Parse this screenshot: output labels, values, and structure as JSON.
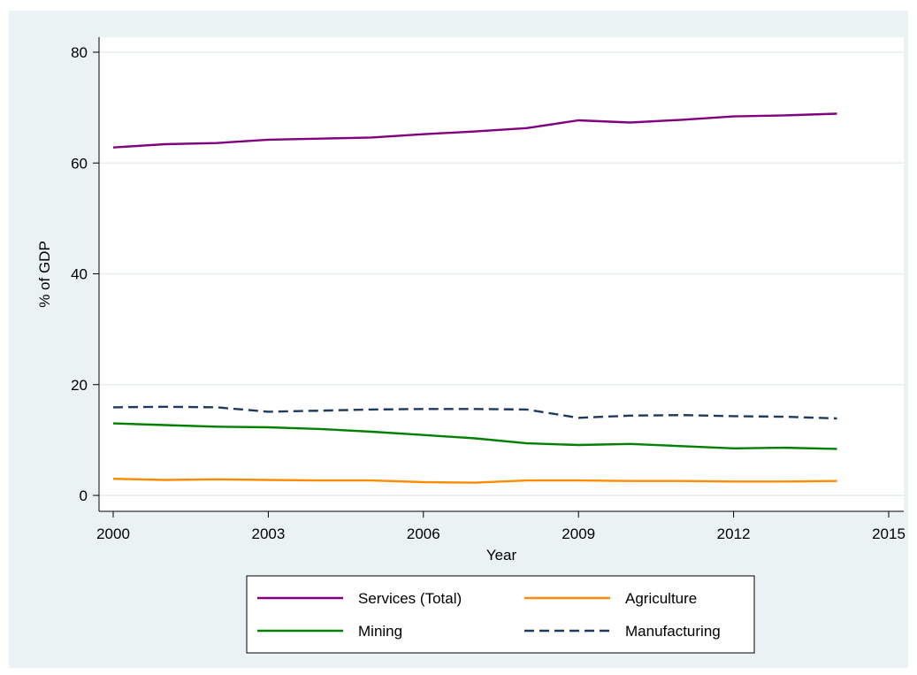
{
  "chart_data": {
    "type": "line",
    "xlabel": "Year",
    "ylabel": "% of GDP",
    "xlim": [
      2000,
      2015
    ],
    "ylim": [
      0,
      80
    ],
    "xticks": [
      2000,
      2003,
      2006,
      2009,
      2012,
      2015
    ],
    "yticks": [
      0,
      20,
      40,
      60,
      80
    ],
    "grid": true,
    "legend_position": "bottom",
    "x": [
      2000,
      2001,
      2002,
      2003,
      2004,
      2005,
      2006,
      2007,
      2008,
      2009,
      2010,
      2011,
      2012,
      2013,
      2014
    ],
    "series": [
      {
        "name": "Services (Total)",
        "color": "#800080",
        "dash": "solid",
        "values": [
          62.8,
          63.4,
          63.6,
          64.2,
          64.4,
          64.6,
          65.2,
          65.7,
          66.3,
          67.7,
          67.3,
          67.8,
          68.4,
          68.6,
          68.9
        ]
      },
      {
        "name": "Agriculture",
        "color": "#FF8C00",
        "dash": "solid",
        "values": [
          3.0,
          2.8,
          2.9,
          2.8,
          2.7,
          2.7,
          2.4,
          2.3,
          2.7,
          2.7,
          2.6,
          2.6,
          2.5,
          2.5,
          2.6
        ]
      },
      {
        "name": "Mining",
        "color": "#008000",
        "dash": "solid",
        "values": [
          13.0,
          12.7,
          12.4,
          12.3,
          12.0,
          11.5,
          10.9,
          10.3,
          9.4,
          9.1,
          9.3,
          8.9,
          8.5,
          8.6,
          8.4
        ]
      },
      {
        "name": "Manufacturing",
        "color": "#1F3A5F",
        "dash": "dashed",
        "values": [
          15.9,
          16.0,
          15.9,
          15.1,
          15.3,
          15.5,
          15.6,
          15.6,
          15.5,
          14.0,
          14.4,
          14.5,
          14.3,
          14.2,
          13.9
        ]
      }
    ]
  }
}
